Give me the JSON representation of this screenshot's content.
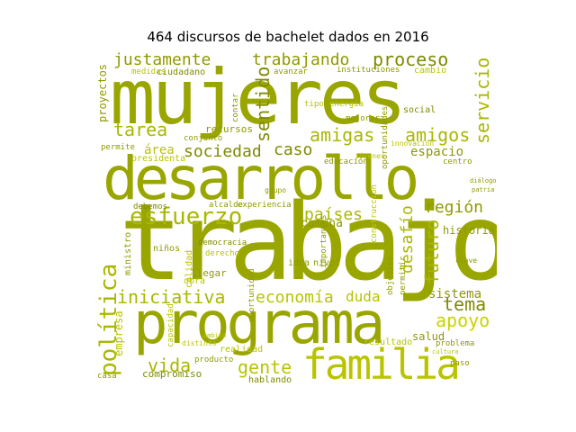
{
  "title": "464 discursos de bachelet dados en 2016",
  "words": {
    "trabajo": "trabajo",
    "mujeres": "mujeres",
    "desarrollo": "desarrollo",
    "programa": "programa",
    "familia": "familia",
    "esfuerzo": "esfuerzo",
    "justamente": "justamente",
    "trabajando": "trabajando",
    "proceso": "proceso",
    "tarea": "tarea",
    "amigas": "amigas",
    "amigos": "amigos",
    "sociedad": "sociedad",
    "caso": "caso",
    "sentido": "sentido",
    "servicio": "servicio",
    "politica": "política",
    "iniciativa": "iniciativa",
    "economia": "economía",
    "gente": "gente",
    "vida": "vida",
    "apoyo": "apoyo",
    "tema": "tema",
    "region": "región",
    "paises": "países",
    "futuro": "futuro",
    "desafio": "desafío",
    "sistema": "sistema",
    "historia": "historia",
    "espacio": "espacio",
    "duda": "duda",
    "comuna": "comuna",
    "area": "área",
    "presidenta": "presidenta",
    "educacion": "educación",
    "recursos": "recursos",
    "cambio": "cambio",
    "social": "social",
    "energia": "energía",
    "mejorar": "mejorar",
    "proyectos": "proyectos",
    "ciudadano": "ciudadano",
    "medidas": "medidas",
    "avanzar": "avanzar",
    "instituciones": "instituciones",
    "conjunto": "conjunto",
    "permite": "permite",
    "debemos": "debemos",
    "experiencia": "experiencia",
    "alcalde": "alcalde",
    "democracia": "democracia",
    "llegar": "llegar",
    "obra": "obra",
    "idea": "idea",
    "nivel": "nivel",
    "calidad": "calidad",
    "empresa": "empresa",
    "compromiso": "compromiso",
    "hablando": "hablando",
    "realidad": "realidad",
    "salud": "salud",
    "resultado": "resultado",
    "problema": "problema",
    "paso": "paso",
    "casa": "casa",
    "ninos": "niños",
    "centro": "centro",
    "importantes": "importantes",
    "objetivo": "objetivo",
    "permitir": "permitir",
    "oportunidad": "oportunidad",
    "oportunidades": "oportunidades",
    "construccion": "construcción",
    "ministro": "ministro",
    "producto": "producto",
    "distinto": "distinto",
    "capacidad": "capacidad",
    "contar": "contar",
    "jovenes": "jóvenes",
    "innovacion": "innovación",
    "tipo": "tipo",
    "grupo": "grupo",
    "derecho": "derecho",
    "clave": "clave",
    "patria": "patria",
    "dialogo": "diálogo",
    "cultura": "cultura",
    "ambito": "ámbito"
  }
}
